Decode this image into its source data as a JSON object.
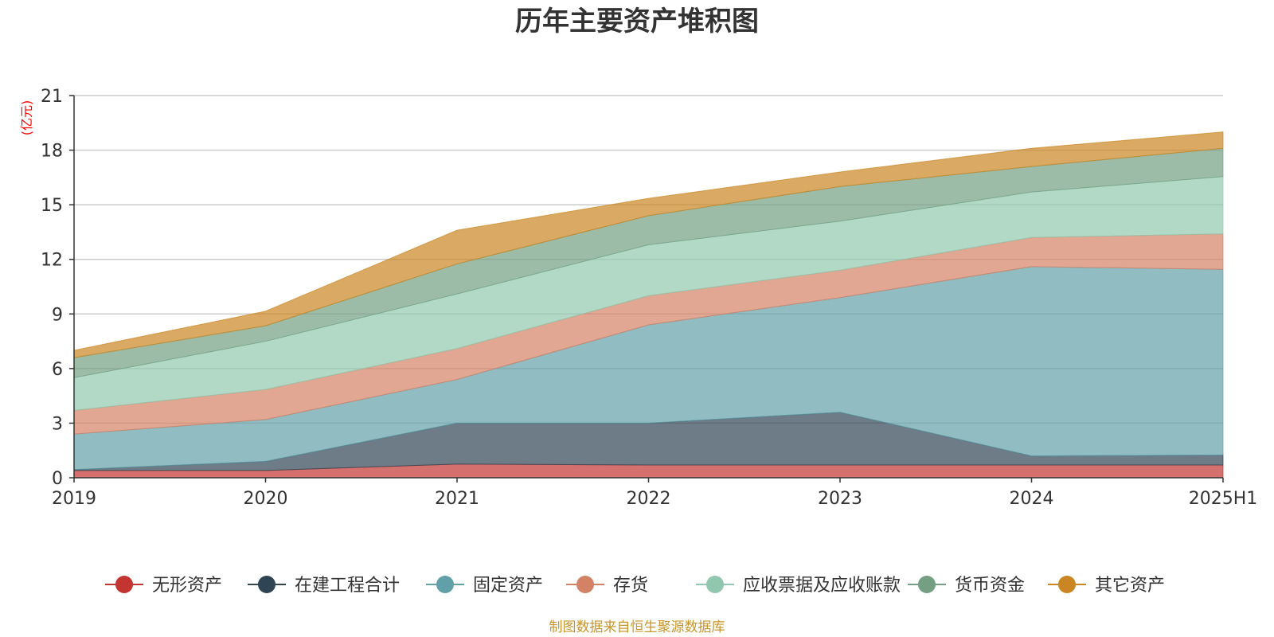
{
  "chart_data": {
    "type": "area",
    "title": "历年主要资产堆积图",
    "y_unit": "(亿元)",
    "categories": [
      "2019",
      "2020",
      "2021",
      "2022",
      "2023",
      "2024",
      "2025H1"
    ],
    "ylim": [
      0,
      21
    ],
    "yticks": [
      "0",
      "3",
      "6",
      "9",
      "12",
      "15",
      "18",
      "21"
    ],
    "grid": true,
    "legend_position": "bottom",
    "stacked": true,
    "series": [
      {
        "name": "无形资产",
        "color": "#c23531",
        "values": [
          0.4,
          0.4,
          0.75,
          0.7,
          0.7,
          0.7,
          0.7
        ]
      },
      {
        "name": "在建工程合计",
        "color": "#2f4554",
        "values": [
          0.05,
          0.5,
          2.25,
          2.3,
          2.9,
          0.5,
          0.55
        ]
      },
      {
        "name": "固定资产",
        "color": "#61a0a8",
        "values": [
          1.95,
          2.3,
          2.4,
          5.4,
          6.3,
          10.4,
          10.2
        ]
      },
      {
        "name": "存货",
        "color": "#d48265",
        "values": [
          1.3,
          1.65,
          1.7,
          1.6,
          1.5,
          1.6,
          1.95
        ]
      },
      {
        "name": "应收票据及应收账款",
        "color": "#91c7ae",
        "values": [
          1.8,
          2.65,
          3.0,
          2.8,
          2.7,
          2.5,
          3.15
        ]
      },
      {
        "name": "货币资金",
        "color": "#749f83",
        "values": [
          1.1,
          0.85,
          1.65,
          1.6,
          1.9,
          1.4,
          1.55
        ]
      },
      {
        "name": "其它资产",
        "color": "#ca8622",
        "values": [
          0.4,
          0.8,
          1.85,
          0.95,
          0.8,
          1.0,
          0.9
        ]
      }
    ]
  },
  "footer": {
    "source": "制图数据来自恒生聚源数据库"
  }
}
